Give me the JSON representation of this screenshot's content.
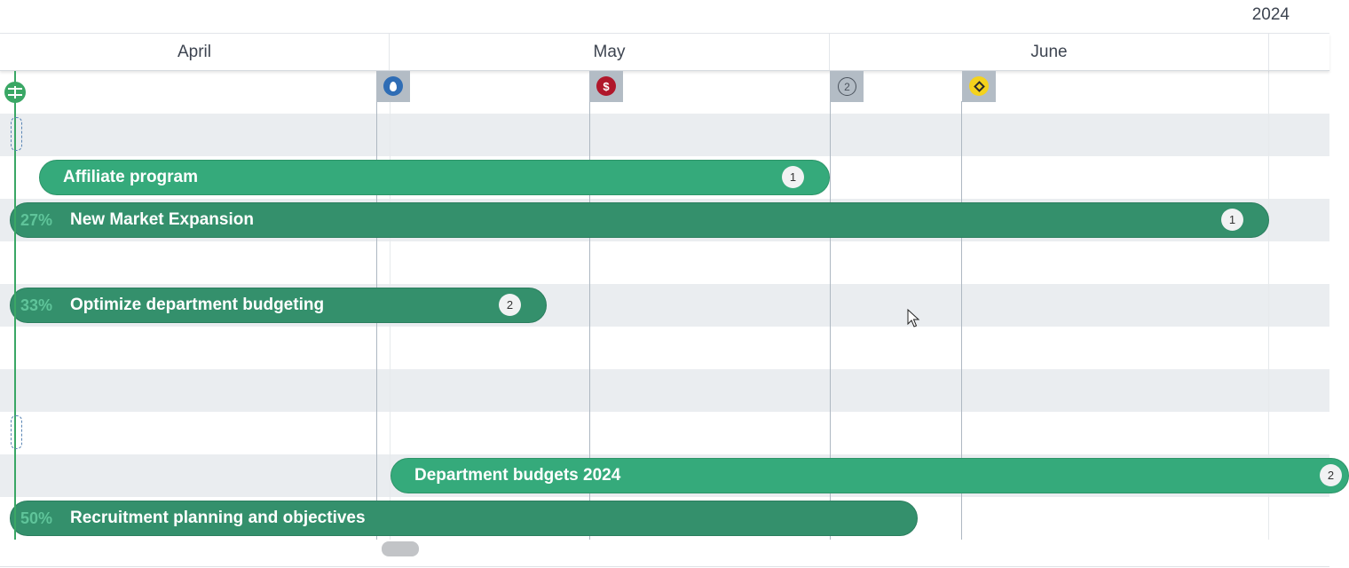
{
  "timeline": {
    "year": "2024",
    "months": [
      {
        "label": "April"
      },
      {
        "label": "May"
      },
      {
        "label": "June"
      }
    ]
  },
  "milestones": [
    {
      "icon": "water-drop-icon",
      "color": "#2f6db5"
    },
    {
      "icon": "dollar-icon",
      "glyph": "$",
      "color": "#b0172b"
    },
    {
      "icon": "number-two-icon",
      "glyph": "2",
      "color": "#4a525c"
    },
    {
      "icon": "diamond-icon",
      "color": "#f4d21c"
    }
  ],
  "bars": [
    {
      "label": "Affiliate program",
      "badge": "1",
      "color": "#35aa7b"
    },
    {
      "label": "New Market Expansion",
      "progress": "27%",
      "badge": "1",
      "color": "#34906c"
    },
    {
      "label": "Optimize department budgeting",
      "progress": "33%",
      "badge": "2",
      "color": "#34906c"
    },
    {
      "label": "Department budgets 2024",
      "badge": "2",
      "color": "#35aa7b"
    },
    {
      "label": "Recruitment planning and objectives",
      "progress": "50%",
      "color": "#34906c"
    }
  ],
  "colors": {
    "today_line": "#3aa765",
    "row_stripe": "#eaedf0",
    "milestone_chip": "#b3bcc5"
  }
}
